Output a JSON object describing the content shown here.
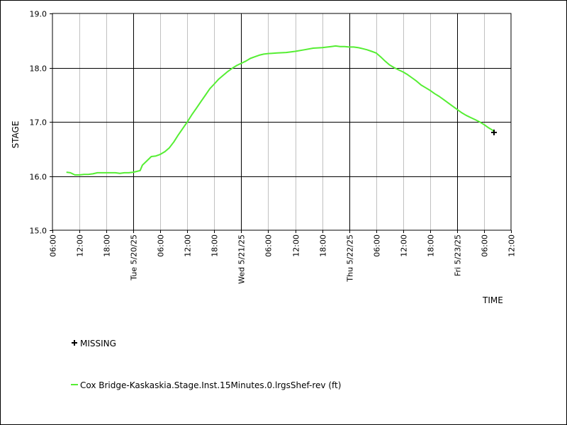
{
  "chart_data": {
    "type": "line",
    "ylabel": "STAGE",
    "xlabel": "TIME",
    "ylim": [
      15.0,
      19.0
    ],
    "y_ticks": [
      "15.0",
      "16.0",
      "17.0",
      "18.0",
      "19.0"
    ],
    "y_tick_values": [
      15.0,
      16.0,
      17.0,
      18.0,
      19.0
    ],
    "x_range_hours": [
      0,
      102
    ],
    "x_ticks": [
      {
        "label": "06:00",
        "hour": 0
      },
      {
        "label": "12:00",
        "hour": 6
      },
      {
        "label": "18:00",
        "hour": 12
      },
      {
        "label": "Tue 5/20/25",
        "hour": 18,
        "major": true
      },
      {
        "label": "06:00",
        "hour": 24
      },
      {
        "label": "12:00",
        "hour": 30
      },
      {
        "label": "18:00",
        "hour": 36
      },
      {
        "label": "Wed 5/21/25",
        "hour": 42,
        "major": true
      },
      {
        "label": "06:00",
        "hour": 48
      },
      {
        "label": "12:00",
        "hour": 54
      },
      {
        "label": "18:00",
        "hour": 60
      },
      {
        "label": "Thu 5/22/25",
        "hour": 66,
        "major": true
      },
      {
        "label": "06:00",
        "hour": 72
      },
      {
        "label": "12:00",
        "hour": 78
      },
      {
        "label": "18:00",
        "hour": 84
      },
      {
        "label": "Fri 5/23/25",
        "hour": 90,
        "major": true
      },
      {
        "label": "06:00",
        "hour": 96
      },
      {
        "label": "12:00",
        "hour": 102
      }
    ],
    "grid": true,
    "legend_position": "bottom-left",
    "series": [
      {
        "name": "Cox Bridge-Kaskaskia.Stage.Inst.15Minutes.0.lrgsShef-rev (ft)",
        "color": "#55ee33",
        "x_hours": [
          3.1,
          4.0,
          5.0,
          6.0,
          7.0,
          8.0,
          9.0,
          10.0,
          11.0,
          12.0,
          13.0,
          14.0,
          15.0,
          16.0,
          17.0,
          18.0,
          18.5,
          19.0,
          19.5,
          20.0,
          21.0,
          22.0,
          23.0,
          24.0,
          25.0,
          26.0,
          27.0,
          28.0,
          29.0,
          30.0,
          31.0,
          32.0,
          33.0,
          34.0,
          35.0,
          36.0,
          37.0,
          38.0,
          39.0,
          40.0,
          41.0,
          42.0,
          43.0,
          44.0,
          45.0,
          46.0,
          47.0,
          48.0,
          50.0,
          52.0,
          54.0,
          56.0,
          58.0,
          60.0,
          62.0,
          63.0,
          64.0,
          65.0,
          66.0,
          67.0,
          68.0,
          69.0,
          70.0,
          71.0,
          72.0,
          73.0,
          74.0,
          75.0,
          76.0,
          77.0,
          78.0,
          79.0,
          80.0,
          81.0,
          82.0,
          83.0,
          84.0,
          85.0,
          86.0,
          87.0,
          88.0,
          89.0,
          90.0,
          91.0,
          92.0,
          93.0,
          94.0,
          95.0,
          96.0,
          97.0,
          98.0,
          98.2
        ],
        "values": [
          16.07,
          16.06,
          16.02,
          16.02,
          16.03,
          16.03,
          16.04,
          16.06,
          16.06,
          16.06,
          16.06,
          16.06,
          16.05,
          16.06,
          16.06,
          16.07,
          16.08,
          16.09,
          16.1,
          16.2,
          16.28,
          16.36,
          16.37,
          16.4,
          16.45,
          16.52,
          16.63,
          16.76,
          16.88,
          17.0,
          17.13,
          17.25,
          17.37,
          17.49,
          17.61,
          17.7,
          17.79,
          17.86,
          17.93,
          17.99,
          18.04,
          18.08,
          18.12,
          18.17,
          18.2,
          18.23,
          18.25,
          18.26,
          18.27,
          18.28,
          18.3,
          18.33,
          18.36,
          18.37,
          18.39,
          18.4,
          18.39,
          18.39,
          18.38,
          18.38,
          18.37,
          18.35,
          18.33,
          18.3,
          18.27,
          18.2,
          18.12,
          18.05,
          18.0,
          17.96,
          17.92,
          17.87,
          17.81,
          17.75,
          17.68,
          17.63,
          17.58,
          17.52,
          17.47,
          17.41,
          17.35,
          17.29,
          17.23,
          17.17,
          17.12,
          17.08,
          17.04,
          17.0,
          16.95,
          16.89,
          16.84,
          16.82
        ]
      }
    ],
    "missing_points": [
      {
        "x_hour": 98.2,
        "value": 16.81
      }
    ]
  },
  "legend": {
    "missing_label": "MISSING",
    "series_label": "Cox Bridge-Kaskaskia.Stage.Inst.15Minutes.0.lrgsShef-rev (ft)"
  },
  "colors": {
    "series": "#55ee33",
    "major_grid": "#000000",
    "minor_grid": "#c0c0c0"
  }
}
